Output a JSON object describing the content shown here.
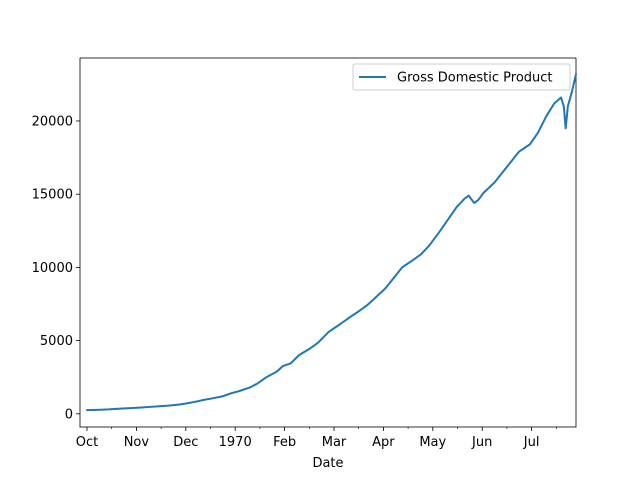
{
  "chart_data": {
    "type": "line",
    "title": "",
    "xlabel": "Date",
    "ylabel": "",
    "x_tick_labels": [
      "Oct",
      "Nov",
      "Dec",
      "1970",
      "Feb",
      "Mar",
      "Apr",
      "May",
      "Jun",
      "Jul"
    ],
    "y_tick_values": [
      0,
      5000,
      10000,
      15000,
      20000
    ],
    "y_tick_labels": [
      "0",
      "5000",
      "10000",
      "15000",
      "20000"
    ],
    "ylim": [
      -900,
      24300
    ],
    "grid": false,
    "legend_position": "top-right",
    "series": [
      {
        "name": "Gross Domestic Product",
        "color": "#1f77b4",
        "points": [
          [
            0.0,
            250
          ],
          [
            0.2,
            260
          ],
          [
            0.5,
            280
          ],
          [
            0.8,
            300
          ],
          [
            1.0,
            330
          ],
          [
            1.3,
            360
          ],
          [
            1.6,
            390
          ],
          [
            2.0,
            430
          ],
          [
            2.3,
            470
          ],
          [
            2.6,
            510
          ],
          [
            3.0,
            560
          ],
          [
            3.4,
            640
          ],
          [
            3.7,
            720
          ],
          [
            4.0,
            830
          ],
          [
            4.3,
            950
          ],
          [
            4.6,
            1050
          ],
          [
            5.0,
            1200
          ],
          [
            5.3,
            1400
          ],
          [
            5.6,
            1550
          ],
          [
            6.0,
            1800
          ],
          [
            6.3,
            2100
          ],
          [
            6.6,
            2500
          ],
          [
            7.0,
            2900
          ],
          [
            7.2,
            3250
          ],
          [
            7.5,
            3450
          ],
          [
            7.8,
            4000
          ],
          [
            8.2,
            4450
          ],
          [
            8.5,
            4850
          ],
          [
            8.9,
            5600
          ],
          [
            9.3,
            6100
          ],
          [
            9.6,
            6500
          ],
          [
            10.0,
            7000
          ],
          [
            10.3,
            7400
          ],
          [
            10.6,
            7900
          ],
          [
            11.0,
            8600
          ],
          [
            11.3,
            9300
          ],
          [
            11.6,
            10000
          ],
          [
            12.0,
            10500
          ],
          [
            12.3,
            10900
          ],
          [
            12.6,
            11500
          ],
          [
            13.0,
            12500
          ],
          [
            13.3,
            13300
          ],
          [
            13.6,
            14100
          ],
          [
            13.9,
            14700
          ],
          [
            14.05,
            14900
          ],
          [
            14.25,
            14400
          ],
          [
            14.4,
            14600
          ],
          [
            14.6,
            15100
          ],
          [
            15.0,
            15800
          ],
          [
            15.3,
            16500
          ],
          [
            15.6,
            17200
          ],
          [
            15.9,
            17900
          ],
          [
            16.3,
            18400
          ],
          [
            16.6,
            19200
          ],
          [
            16.9,
            20300
          ],
          [
            17.2,
            21200
          ],
          [
            17.45,
            21600
          ],
          [
            17.55,
            21000
          ],
          [
            17.62,
            19500
          ],
          [
            17.7,
            21000
          ],
          [
            17.85,
            22000
          ],
          [
            18.0,
            23200
          ]
        ]
      }
    ]
  }
}
